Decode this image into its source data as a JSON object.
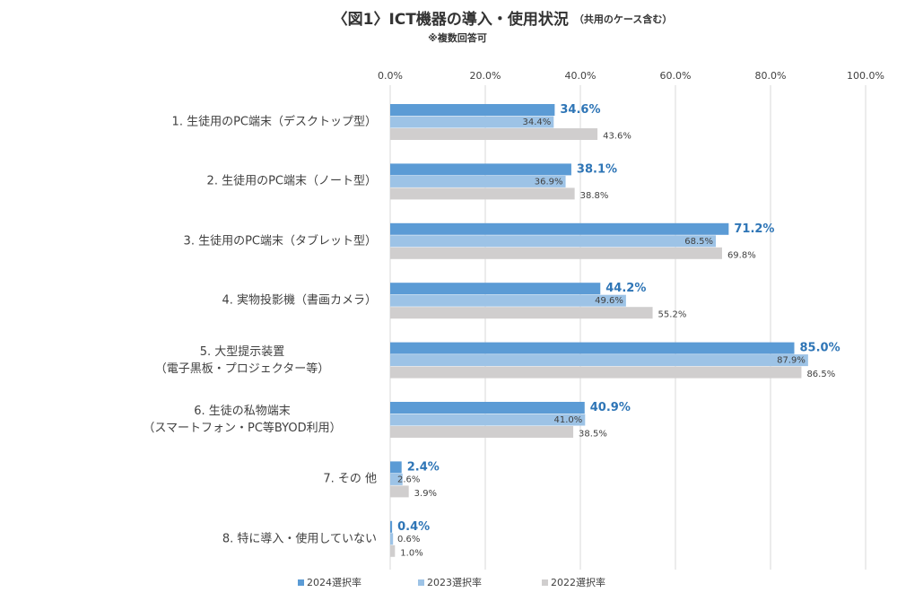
{
  "chart_data": {
    "type": "bar",
    "orientation": "horizontal",
    "title": "〈図1〉ICT機器の導入・使用状況",
    "title_note": "（共用のケース含む）",
    "subtitle": "※複数回答可",
    "categories": [
      "1. 生徒用のPC端末（デスクトップ型）",
      "2. 生徒用のPC端末（ノート型）",
      "3. 生徒用のPC端末（タブレット型）",
      "4. 実物投影機（書画カメラ）",
      "5. 大型提示装置\n（電子黒板・プロジェクター等）",
      "6. 生徒の私物端末\n（スマートフォン・PC等BYOD利用）",
      "7. その 他",
      "8. 特に導入・使用していない"
    ],
    "series": [
      {
        "name": "2024選択率",
        "color": "#5b9bd5",
        "values": [
          34.6,
          38.1,
          71.2,
          44.2,
          85.0,
          40.9,
          2.4,
          0.4
        ],
        "value_labels": [
          "34.6%",
          "38.1%",
          "71.2%",
          "44.2%",
          "85.0%",
          "40.9%",
          "2.4%",
          "0.4%"
        ]
      },
      {
        "name": "2023選択率",
        "color": "#9dc3e6",
        "values": [
          34.4,
          36.9,
          68.5,
          49.6,
          87.9,
          41.0,
          2.6,
          0.6
        ],
        "value_labels": [
          "34.4%",
          "36.9%",
          "68.5%",
          "49.6%",
          "87.9%",
          "41.0%",
          "2.6%",
          "0.6%"
        ]
      },
      {
        "name": "2022選択率",
        "color": "#d0cece",
        "values": [
          43.6,
          38.8,
          69.8,
          55.2,
          86.5,
          38.5,
          3.9,
          1.0
        ],
        "value_labels": [
          "43.6%",
          "38.8%",
          "69.8%",
          "55.2%",
          "86.5%",
          "38.5%",
          "3.9%",
          "1.0%"
        ]
      }
    ],
    "xlim": [
      0,
      100
    ],
    "xticks": [
      {
        "value": 0,
        "label": "0.0%"
      },
      {
        "value": 20,
        "label": "20.0%"
      },
      {
        "value": 40,
        "label": "40.0%"
      },
      {
        "value": 60,
        "label": "60.0%"
      },
      {
        "value": 80,
        "label": "80.0%"
      },
      {
        "value": 100,
        "label": "100.0%"
      }
    ],
    "grid": true,
    "legend": "bottom"
  }
}
